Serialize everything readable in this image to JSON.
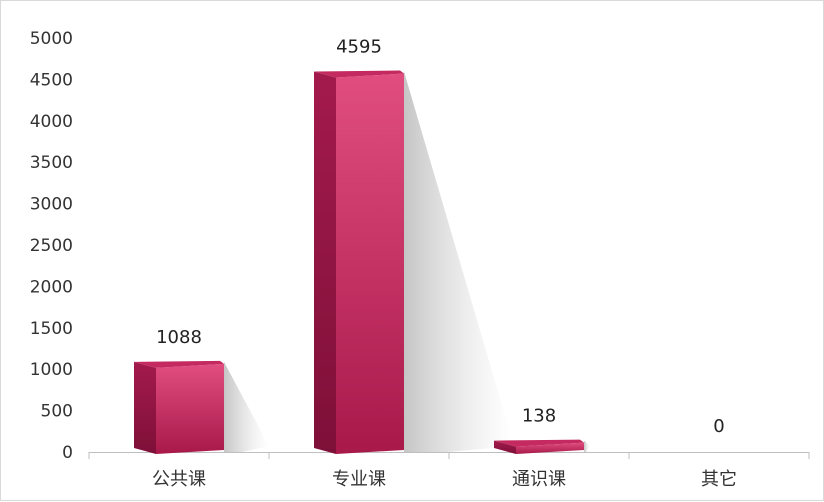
{
  "chart_data": {
    "type": "bar",
    "style": "3d-prism",
    "categories": [
      "公共课",
      "专业课",
      "通识课",
      "其它"
    ],
    "values": [
      1088,
      4595,
      138,
      0
    ],
    "data_labels": [
      "1088",
      "4595",
      "138",
      "0"
    ],
    "yticks": [
      0,
      500,
      1000,
      1500,
      2000,
      2500,
      3000,
      3500,
      4000,
      4500,
      5000
    ],
    "ytick_labels": [
      "0",
      "500",
      "1000",
      "1500",
      "2000",
      "2500",
      "3000",
      "3500",
      "4000",
      "4500",
      "5000"
    ],
    "ylim": [
      0,
      5000
    ],
    "title": "",
    "xlabel": "",
    "ylabel": "",
    "grid": false,
    "legend": "none",
    "colors": {
      "bar_front_top": "#e14d7f",
      "bar_front_bottom": "#a8194a",
      "bar_side": "#8e1440",
      "bar_top": "#c42a5f",
      "shadow": "#cccccc"
    }
  }
}
